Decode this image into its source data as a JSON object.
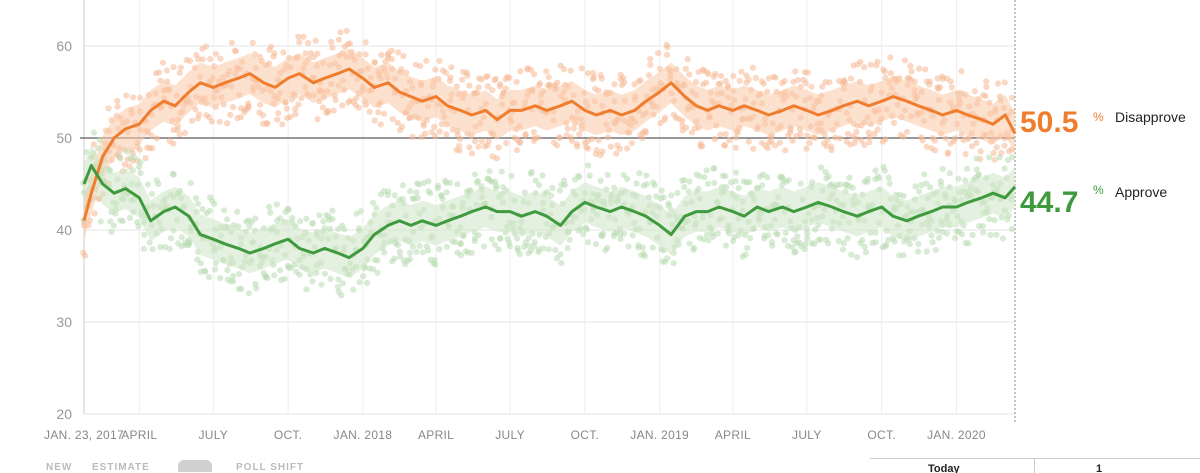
{
  "chart_data": {
    "type": "line",
    "title": "",
    "xlabel": "",
    "ylabel": "",
    "ylim": [
      20,
      65
    ],
    "xlim": [
      "2017-01-23",
      "2020-03-13"
    ],
    "yticks": [
      20,
      30,
      40,
      50,
      60
    ],
    "reference_line": 50,
    "grid": true,
    "x_tick_labels": [
      {
        "date": "2017-01-23",
        "label": "JAN. 23, 2017"
      },
      {
        "date": "2017-04-01",
        "label": "APRIL"
      },
      {
        "date": "2017-07-01",
        "label": "JULY"
      },
      {
        "date": "2017-10-01",
        "label": "OCT."
      },
      {
        "date": "2018-01-01",
        "label": "JAN. 2018"
      },
      {
        "date": "2018-04-01",
        "label": "APRIL"
      },
      {
        "date": "2018-07-01",
        "label": "JULY"
      },
      {
        "date": "2018-10-01",
        "label": "OCT."
      },
      {
        "date": "2019-01-01",
        "label": "JAN. 2019"
      },
      {
        "date": "2019-04-01",
        "label": "APRIL"
      },
      {
        "date": "2019-07-01",
        "label": "JULY"
      },
      {
        "date": "2019-10-01",
        "label": "OCT."
      },
      {
        "date": "2020-01-01",
        "label": "JAN. 2020"
      }
    ],
    "series": [
      {
        "name": "Disapprove",
        "color": "#ef7d2d",
        "band_color": "#f9c9a8",
        "dot_color": "#f6b894",
        "end_value": "50.5",
        "points": [
          [
            "2017-01-23",
            41
          ],
          [
            "2017-02-01",
            44
          ],
          [
            "2017-02-15",
            48
          ],
          [
            "2017-03-01",
            50
          ],
          [
            "2017-03-15",
            51
          ],
          [
            "2017-04-01",
            51.5
          ],
          [
            "2017-04-15",
            53
          ],
          [
            "2017-05-01",
            54
          ],
          [
            "2017-05-15",
            53.5
          ],
          [
            "2017-06-01",
            55
          ],
          [
            "2017-06-15",
            56
          ],
          [
            "2017-07-01",
            55.5
          ],
          [
            "2017-07-15",
            56
          ],
          [
            "2017-08-01",
            56.5
          ],
          [
            "2017-08-15",
            57
          ],
          [
            "2017-09-01",
            56
          ],
          [
            "2017-09-15",
            55.5
          ],
          [
            "2017-10-01",
            56.5
          ],
          [
            "2017-10-15",
            57
          ],
          [
            "2017-11-01",
            56
          ],
          [
            "2017-11-15",
            56.5
          ],
          [
            "2017-12-01",
            57
          ],
          [
            "2017-12-15",
            57.5
          ],
          [
            "2018-01-01",
            56.5
          ],
          [
            "2018-01-15",
            55.5
          ],
          [
            "2018-02-01",
            56
          ],
          [
            "2018-02-15",
            55
          ],
          [
            "2018-03-01",
            54.5
          ],
          [
            "2018-03-15",
            54
          ],
          [
            "2018-04-01",
            54.5
          ],
          [
            "2018-04-15",
            53.5
          ],
          [
            "2018-05-01",
            53
          ],
          [
            "2018-05-15",
            52.5
          ],
          [
            "2018-06-01",
            53
          ],
          [
            "2018-06-15",
            52
          ],
          [
            "2018-07-01",
            53
          ],
          [
            "2018-07-15",
            53
          ],
          [
            "2018-08-01",
            53.5
          ],
          [
            "2018-08-15",
            53
          ],
          [
            "2018-09-01",
            53.5
          ],
          [
            "2018-09-15",
            54
          ],
          [
            "2018-10-01",
            53
          ],
          [
            "2018-10-15",
            52.5
          ],
          [
            "2018-11-01",
            53
          ],
          [
            "2018-11-15",
            52.5
          ],
          [
            "2018-12-01",
            53
          ],
          [
            "2018-12-15",
            54
          ],
          [
            "2019-01-01",
            55
          ],
          [
            "2019-01-15",
            56
          ],
          [
            "2019-02-01",
            54.5
          ],
          [
            "2019-02-15",
            53.5
          ],
          [
            "2019-03-01",
            53
          ],
          [
            "2019-03-15",
            53.5
          ],
          [
            "2019-04-01",
            53
          ],
          [
            "2019-04-15",
            53.5
          ],
          [
            "2019-05-01",
            53
          ],
          [
            "2019-05-15",
            52.5
          ],
          [
            "2019-06-01",
            53
          ],
          [
            "2019-06-15",
            53.5
          ],
          [
            "2019-07-01",
            53
          ],
          [
            "2019-07-15",
            52.5
          ],
          [
            "2019-08-01",
            53
          ],
          [
            "2019-08-15",
            53.5
          ],
          [
            "2019-09-01",
            54
          ],
          [
            "2019-09-15",
            53.5
          ],
          [
            "2019-10-01",
            54
          ],
          [
            "2019-10-15",
            54.5
          ],
          [
            "2019-11-01",
            54
          ],
          [
            "2019-11-15",
            53.5
          ],
          [
            "2019-12-01",
            53
          ],
          [
            "2019-12-15",
            52.5
          ],
          [
            "2020-01-01",
            53
          ],
          [
            "2020-01-15",
            52.5
          ],
          [
            "2020-02-01",
            52
          ],
          [
            "2020-02-15",
            51.5
          ],
          [
            "2020-03-01",
            52.5
          ],
          [
            "2020-03-13",
            50.5
          ]
        ]
      },
      {
        "name": "Approve",
        "color": "#3f9a3d",
        "band_color": "#cfe6c7",
        "dot_color": "#b8dbb0",
        "end_value": "44.7",
        "points": [
          [
            "2017-01-23",
            45
          ],
          [
            "2017-02-01",
            47
          ],
          [
            "2017-02-15",
            45
          ],
          [
            "2017-03-01",
            44
          ],
          [
            "2017-03-15",
            44.5
          ],
          [
            "2017-04-01",
            43.5
          ],
          [
            "2017-04-15",
            41
          ],
          [
            "2017-05-01",
            42
          ],
          [
            "2017-05-15",
            42.5
          ],
          [
            "2017-06-01",
            41.5
          ],
          [
            "2017-06-15",
            39.5
          ],
          [
            "2017-07-01",
            39
          ],
          [
            "2017-07-15",
            38.5
          ],
          [
            "2017-08-01",
            38
          ],
          [
            "2017-08-15",
            37.5
          ],
          [
            "2017-09-01",
            38
          ],
          [
            "2017-09-15",
            38.5
          ],
          [
            "2017-10-01",
            39
          ],
          [
            "2017-10-15",
            38
          ],
          [
            "2017-11-01",
            37.5
          ],
          [
            "2017-11-15",
            38
          ],
          [
            "2017-12-01",
            37.5
          ],
          [
            "2017-12-15",
            37
          ],
          [
            "2018-01-01",
            38
          ],
          [
            "2018-01-15",
            39.5
          ],
          [
            "2018-02-01",
            40.5
          ],
          [
            "2018-02-15",
            41
          ],
          [
            "2018-03-01",
            40.5
          ],
          [
            "2018-03-15",
            41
          ],
          [
            "2018-04-01",
            40.5
          ],
          [
            "2018-04-15",
            41
          ],
          [
            "2018-05-01",
            41.5
          ],
          [
            "2018-05-15",
            42
          ],
          [
            "2018-06-01",
            42.5
          ],
          [
            "2018-06-15",
            42
          ],
          [
            "2018-07-01",
            42
          ],
          [
            "2018-07-15",
            41.5
          ],
          [
            "2018-08-01",
            42
          ],
          [
            "2018-08-15",
            41.5
          ],
          [
            "2018-09-01",
            40.5
          ],
          [
            "2018-09-15",
            42
          ],
          [
            "2018-10-01",
            43
          ],
          [
            "2018-10-15",
            42.5
          ],
          [
            "2018-11-01",
            42
          ],
          [
            "2018-11-15",
            42.5
          ],
          [
            "2018-12-01",
            42
          ],
          [
            "2018-12-15",
            41.5
          ],
          [
            "2019-01-01",
            40.5
          ],
          [
            "2019-01-15",
            39.5
          ],
          [
            "2019-02-01",
            41.5
          ],
          [
            "2019-02-15",
            42
          ],
          [
            "2019-03-01",
            42
          ],
          [
            "2019-03-15",
            42.5
          ],
          [
            "2019-04-01",
            42
          ],
          [
            "2019-04-15",
            41.5
          ],
          [
            "2019-05-01",
            42.5
          ],
          [
            "2019-05-15",
            42
          ],
          [
            "2019-06-01",
            42.5
          ],
          [
            "2019-06-15",
            42
          ],
          [
            "2019-07-01",
            42.5
          ],
          [
            "2019-07-15",
            43
          ],
          [
            "2019-08-01",
            42.5
          ],
          [
            "2019-08-15",
            42
          ],
          [
            "2019-09-01",
            41.5
          ],
          [
            "2019-09-15",
            42
          ],
          [
            "2019-10-01",
            42.5
          ],
          [
            "2019-10-15",
            41.5
          ],
          [
            "2019-11-01",
            41
          ],
          [
            "2019-11-15",
            41.5
          ],
          [
            "2019-12-01",
            42
          ],
          [
            "2019-12-15",
            42.5
          ],
          [
            "2020-01-01",
            42.5
          ],
          [
            "2020-01-15",
            43
          ],
          [
            "2020-02-01",
            43.5
          ],
          [
            "2020-02-15",
            44
          ],
          [
            "2020-03-01",
            43.5
          ],
          [
            "2020-03-13",
            44.7
          ]
        ]
      }
    ]
  },
  "end_labels": {
    "disapprove": {
      "value": "50.5",
      "pct": "%",
      "label": "Disapprove"
    },
    "approve": {
      "value": "44.7",
      "pct": "%",
      "label": "Approve"
    }
  },
  "bottom_strip": {
    "legend_left": "NEW",
    "legend_middle": "ESTIMATE",
    "legend_right": "POLL SHIFT",
    "table_left": "Today",
    "table_right": "1"
  }
}
